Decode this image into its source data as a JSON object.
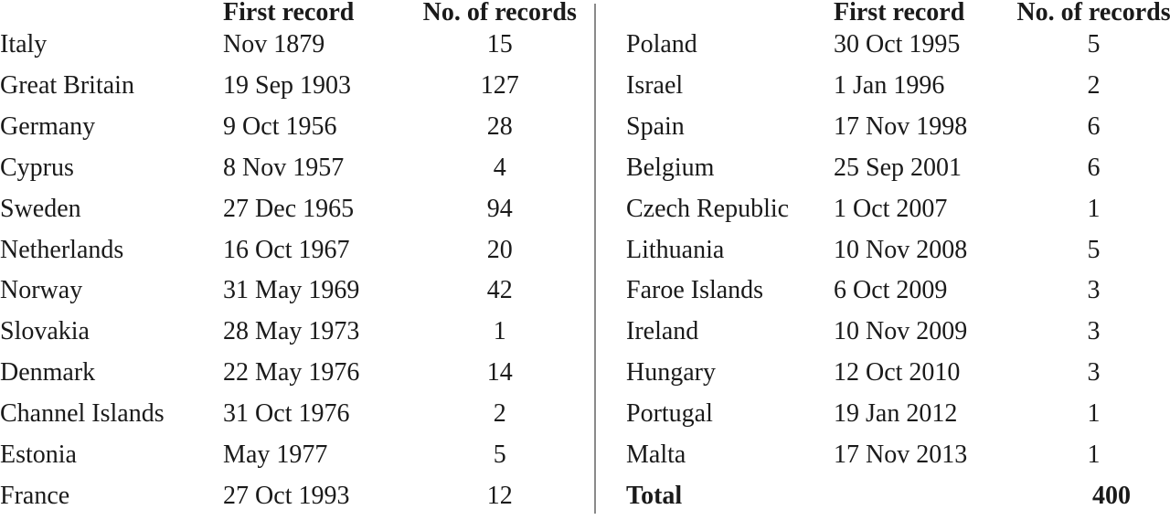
{
  "headers": {
    "first_record": "First record",
    "no_of_records": "No. of records"
  },
  "left_rows": [
    {
      "country": "Italy",
      "first_record": "Nov 1879",
      "records": "15"
    },
    {
      "country": "Great Britain",
      "first_record": "19 Sep 1903",
      "records": "127"
    },
    {
      "country": "Germany",
      "first_record": "9 Oct 1956",
      "records": "28"
    },
    {
      "country": "Cyprus",
      "first_record": "8 Nov 1957",
      "records": "4"
    },
    {
      "country": "Sweden",
      "first_record": "27 Dec 1965",
      "records": "94"
    },
    {
      "country": "Netherlands",
      "first_record": "16 Oct 1967",
      "records": "20"
    },
    {
      "country": "Norway",
      "first_record": "31 May 1969",
      "records": "42"
    },
    {
      "country": "Slovakia",
      "first_record": "28 May 1973",
      "records": "1"
    },
    {
      "country": "Denmark",
      "first_record": "22 May 1976",
      "records": "14"
    },
    {
      "country": "Channel Islands",
      "first_record": "31 Oct 1976",
      "records": "2"
    },
    {
      "country": "Estonia",
      "first_record": "May 1977",
      "records": "5"
    },
    {
      "country": "France",
      "first_record": "27 Oct 1993",
      "records": "12"
    }
  ],
  "right_rows": [
    {
      "country": "Poland",
      "first_record": "30 Oct 1995",
      "records": "5"
    },
    {
      "country": "Israel",
      "first_record": "1 Jan 1996",
      "records": "2"
    },
    {
      "country": "Spain",
      "first_record": "17 Nov 1998",
      "records": "6"
    },
    {
      "country": "Belgium",
      "first_record": "25 Sep 2001",
      "records": "6"
    },
    {
      "country": "Czech Republic",
      "first_record": "1 Oct 2007",
      "records": "1"
    },
    {
      "country": "Lithuania",
      "first_record": "10 Nov 2008",
      "records": "5"
    },
    {
      "country": "Faroe Islands",
      "first_record": "6 Oct 2009",
      "records": "3"
    },
    {
      "country": "Ireland",
      "first_record": "10 Nov 2009",
      "records": "3"
    },
    {
      "country": "Hungary",
      "first_record": "12 Oct 2010",
      "records": "3"
    },
    {
      "country": "Portugal",
      "first_record": "19 Jan 2012",
      "records": "1"
    },
    {
      "country": "Malta",
      "first_record": "17 Nov 2013",
      "records": "1"
    }
  ],
  "total": {
    "label": "Total",
    "value": "400"
  }
}
